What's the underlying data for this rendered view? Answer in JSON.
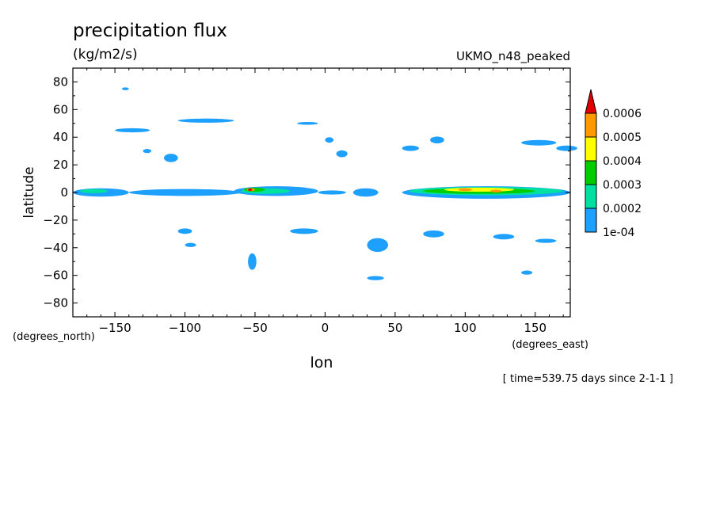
{
  "chart_data": {
    "type": "heatmap",
    "title": "precipitation flux",
    "units": "(kg/m2/s)",
    "dataset": "UKMO_n48_peaked",
    "xlabel": "lon",
    "ylabel": "latitude",
    "x_unit_label": "(degrees_east)",
    "y_unit_label": "(degrees_north)",
    "time_label": "[ time=539.75 days since 2-1-1 ]",
    "xlim": [
      -180,
      175
    ],
    "ylim": [
      -90,
      90
    ],
    "x_ticks": [
      -150,
      -100,
      -50,
      0,
      50,
      100,
      150
    ],
    "x_tick_labels": [
      "−150",
      "−100",
      "−50",
      "0",
      "50",
      "100",
      "150"
    ],
    "y_ticks": [
      -80,
      -60,
      -40,
      -20,
      0,
      20,
      40,
      60,
      80
    ],
    "y_tick_labels": [
      "−80",
      "−60",
      "−40",
      "−20",
      "0",
      "20",
      "40",
      "60",
      "80"
    ],
    "legend": {
      "placement": "right",
      "levels": [
        "1e-04",
        "0.0002",
        "0.0003",
        "0.0004",
        "0.0005",
        "0.0006"
      ],
      "colors": [
        "#1ea0ff",
        "#00e0a0",
        "#00cc00",
        "#ffff00",
        "#ff9900",
        "#e00000"
      ]
    },
    "regions": [
      {
        "lon": -180,
        "lat": 0,
        "w": 40,
        "h": 6,
        "level": 0
      },
      {
        "lon": -140,
        "lat": 0,
        "w": 80,
        "h": 5,
        "level": 0
      },
      {
        "lon": -65,
        "lat": 1,
        "w": 60,
        "h": 7,
        "level": 0
      },
      {
        "lon": -5,
        "lat": 0,
        "w": 20,
        "h": 3,
        "level": 0
      },
      {
        "lon": 20,
        "lat": 0,
        "w": 18,
        "h": 6,
        "level": 0
      },
      {
        "lon": 55,
        "lat": 0,
        "w": 120,
        "h": 9,
        "level": 0
      },
      {
        "lon": -175,
        "lat": 1,
        "w": 20,
        "h": 3,
        "level": 1
      },
      {
        "lon": -60,
        "lat": 1,
        "w": 35,
        "h": 4,
        "level": 1
      },
      {
        "lon": 60,
        "lat": 1,
        "w": 110,
        "h": 6,
        "level": 1
      },
      {
        "lon": 70,
        "lat": 1,
        "w": 80,
        "h": 4,
        "level": 2
      },
      {
        "lon": -58,
        "lat": 2,
        "w": 15,
        "h": 3,
        "level": 2
      },
      {
        "lon": 85,
        "lat": 2,
        "w": 50,
        "h": 3,
        "level": 3
      },
      {
        "lon": -56,
        "lat": 2,
        "w": 6,
        "h": 2,
        "level": 4
      },
      {
        "lon": 118,
        "lat": 1,
        "w": 8,
        "h": 2,
        "level": 4
      },
      {
        "lon": 95,
        "lat": 2,
        "w": 10,
        "h": 2,
        "level": 4
      },
      {
        "lon": -55,
        "lat": 2,
        "w": 3,
        "h": 1,
        "level": 5
      },
      {
        "lon": -105,
        "lat": 52,
        "w": 40,
        "h": 3,
        "level": 0
      },
      {
        "lon": -150,
        "lat": 45,
        "w": 25,
        "h": 3,
        "level": 0
      },
      {
        "lon": -115,
        "lat": 25,
        "w": 10,
        "h": 6,
        "level": 0
      },
      {
        "lon": -130,
        "lat": 30,
        "w": 6,
        "h": 3,
        "level": 0
      },
      {
        "lon": -20,
        "lat": 50,
        "w": 15,
        "h": 2,
        "level": 0
      },
      {
        "lon": 0,
        "lat": 38,
        "w": 6,
        "h": 4,
        "level": 0
      },
      {
        "lon": 8,
        "lat": 28,
        "w": 8,
        "h": 5,
        "level": 0
      },
      {
        "lon": 55,
        "lat": 32,
        "w": 12,
        "h": 4,
        "level": 0
      },
      {
        "lon": 75,
        "lat": 38,
        "w": 10,
        "h": 5,
        "level": 0
      },
      {
        "lon": 140,
        "lat": 36,
        "w": 25,
        "h": 4,
        "level": 0
      },
      {
        "lon": 165,
        "lat": 32,
        "w": 15,
        "h": 4,
        "level": 0
      },
      {
        "lon": -145,
        "lat": 75,
        "w": 5,
        "h": 2,
        "level": 0
      },
      {
        "lon": -105,
        "lat": -28,
        "w": 10,
        "h": 4,
        "level": 0
      },
      {
        "lon": -100,
        "lat": -38,
        "w": 8,
        "h": 3,
        "level": 0
      },
      {
        "lon": -25,
        "lat": -28,
        "w": 20,
        "h": 4,
        "level": 0
      },
      {
        "lon": -55,
        "lat": -50,
        "w": 6,
        "h": 12,
        "level": 0
      },
      {
        "lon": 30,
        "lat": -38,
        "w": 15,
        "h": 10,
        "level": 0
      },
      {
        "lon": 70,
        "lat": -30,
        "w": 15,
        "h": 5,
        "level": 0
      },
      {
        "lon": 120,
        "lat": -32,
        "w": 15,
        "h": 4,
        "level": 0
      },
      {
        "lon": 150,
        "lat": -35,
        "w": 15,
        "h": 3,
        "level": 0
      },
      {
        "lon": 140,
        "lat": -58,
        "w": 8,
        "h": 3,
        "level": 0
      },
      {
        "lon": 30,
        "lat": -62,
        "w": 12,
        "h": 3,
        "level": 0
      }
    ]
  }
}
